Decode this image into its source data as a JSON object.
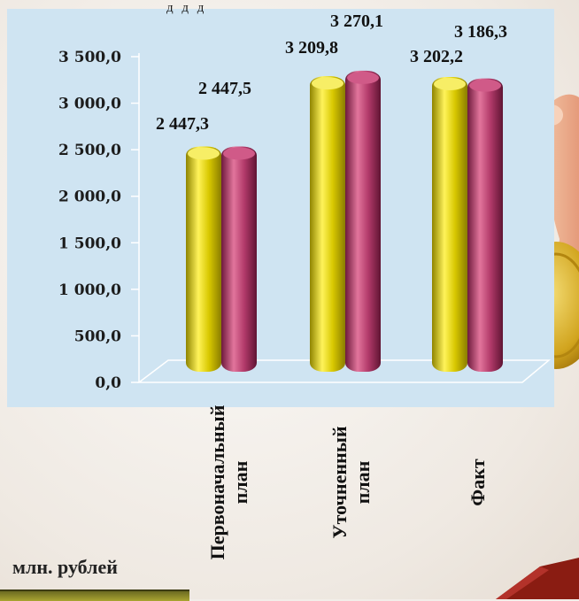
{
  "title_fragment": "д д д",
  "units_label": "млн. рублей",
  "chart_data": {
    "type": "bar",
    "categories": [
      "Первоначальный план",
      "Уточненный план",
      "Факт"
    ],
    "series": [
      {
        "values": [
          2447.3,
          3209.8,
          3202.2
        ]
      },
      {
        "values": [
          2447.5,
          3270.1,
          3186.3
        ]
      }
    ],
    "value_labels": [
      [
        "2 447,3",
        "3 209,8",
        "3 202,2"
      ],
      [
        "2 447,5",
        "3 270,1",
        "3 186,3"
      ]
    ],
    "yticks": [
      "0,0",
      "500,0",
      "1 000,0",
      "1 500,0",
      "2 000,0",
      "2 500,0",
      "3 000,0",
      "3 500,0"
    ],
    "ylim": [
      0,
      3500
    ],
    "grid": false,
    "legend": "none",
    "colors": [
      "#e8d800",
      "#b23a6a"
    ]
  }
}
